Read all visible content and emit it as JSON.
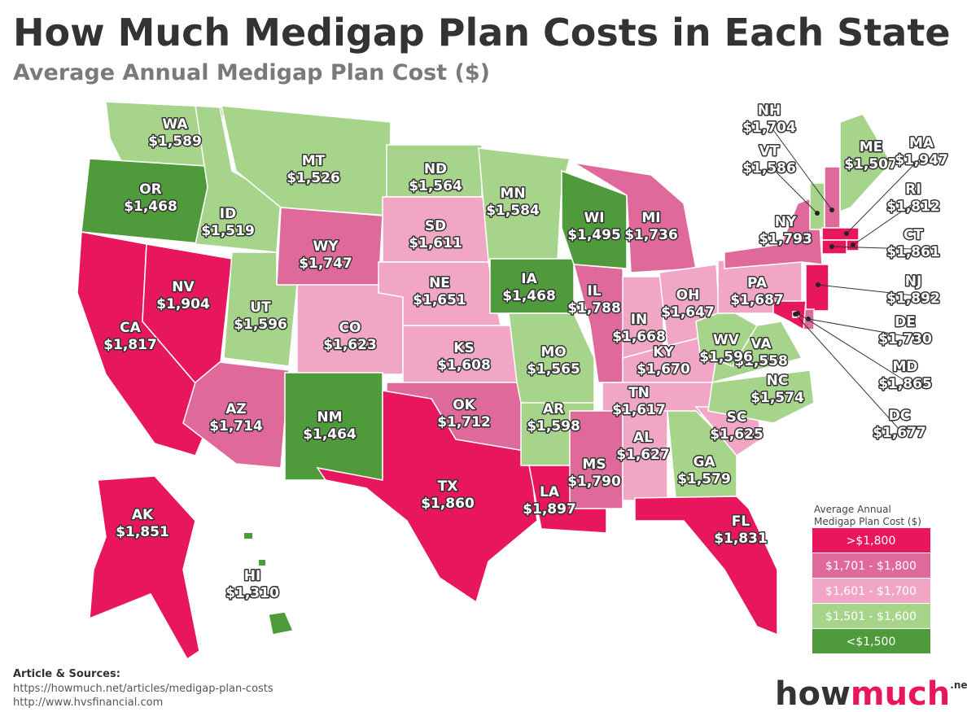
{
  "header": {
    "title": "How Much Medigap Plan Costs in Each State",
    "subtitle": "Average Annual Medigap Plan Cost ($)"
  },
  "states": [
    {
      "abbr": "WA",
      "cost": "$1,589",
      "color": "#a6d48a"
    },
    {
      "abbr": "OR",
      "cost": "$1,468",
      "color": "#4f9a3a"
    },
    {
      "abbr": "CA",
      "cost": "$1,817",
      "color": "#e8175d"
    },
    {
      "abbr": "NV",
      "cost": "$1,904",
      "color": "#e8175d"
    },
    {
      "abbr": "ID",
      "cost": "$1,519",
      "color": "#a6d48a"
    },
    {
      "abbr": "MT",
      "cost": "$1,526",
      "color": "#a6d48a"
    },
    {
      "abbr": "WY",
      "cost": "$1,747",
      "color": "#e0699b"
    },
    {
      "abbr": "UT",
      "cost": "$1,596",
      "color": "#a6d48a"
    },
    {
      "abbr": "CO",
      "cost": "$1,623",
      "color": "#f2a6c6"
    },
    {
      "abbr": "AZ",
      "cost": "$1,714",
      "color": "#e0699b"
    },
    {
      "abbr": "NM",
      "cost": "$1,464",
      "color": "#4f9a3a"
    },
    {
      "abbr": "ND",
      "cost": "$1,564",
      "color": "#a6d48a"
    },
    {
      "abbr": "SD",
      "cost": "$1,611",
      "color": "#f2a6c6"
    },
    {
      "abbr": "NE",
      "cost": "$1,651",
      "color": "#f2a6c6"
    },
    {
      "abbr": "KS",
      "cost": "$1,608",
      "color": "#f2a6c6"
    },
    {
      "abbr": "OK",
      "cost": "$1,712",
      "color": "#e0699b"
    },
    {
      "abbr": "TX",
      "cost": "$1,860",
      "color": "#e8175d"
    },
    {
      "abbr": "MN",
      "cost": "$1,584",
      "color": "#a6d48a"
    },
    {
      "abbr": "IA",
      "cost": "$1,468",
      "color": "#4f9a3a"
    },
    {
      "abbr": "MO",
      "cost": "$1,565",
      "color": "#a6d48a"
    },
    {
      "abbr": "AR",
      "cost": "$1,598",
      "color": "#a6d48a"
    },
    {
      "abbr": "LA",
      "cost": "$1,897",
      "color": "#e8175d"
    },
    {
      "abbr": "WI",
      "cost": "$1,495",
      "color": "#4f9a3a"
    },
    {
      "abbr": "IL",
      "cost": "$1,788",
      "color": "#e0699b"
    },
    {
      "abbr": "MI",
      "cost": "$1,736",
      "color": "#e0699b"
    },
    {
      "abbr": "IN",
      "cost": "$1,668",
      "color": "#f2a6c6"
    },
    {
      "abbr": "OH",
      "cost": "$1,647",
      "color": "#f2a6c6"
    },
    {
      "abbr": "KY",
      "cost": "$1,670",
      "color": "#f2a6c6"
    },
    {
      "abbr": "TN",
      "cost": "$1,617",
      "color": "#f2a6c6"
    },
    {
      "abbr": "MS",
      "cost": "$1,790",
      "color": "#e0699b"
    },
    {
      "abbr": "AL",
      "cost": "$1,627",
      "color": "#f2a6c6"
    },
    {
      "abbr": "GA",
      "cost": "$1,579",
      "color": "#a6d48a"
    },
    {
      "abbr": "FL",
      "cost": "$1,831",
      "color": "#e8175d"
    },
    {
      "abbr": "SC",
      "cost": "$1,625",
      "color": "#f2a6c6"
    },
    {
      "abbr": "NC",
      "cost": "$1,574",
      "color": "#a6d48a"
    },
    {
      "abbr": "VA",
      "cost": "$1,558",
      "color": "#a6d48a"
    },
    {
      "abbr": "WV",
      "cost": "$1,596",
      "color": "#a6d48a"
    },
    {
      "abbr": "PA",
      "cost": "$1,687",
      "color": "#f2a6c6"
    },
    {
      "abbr": "NY",
      "cost": "$1,793",
      "color": "#e0699b"
    },
    {
      "abbr": "VT",
      "cost": "$1,586",
      "color": "#a6d48a"
    },
    {
      "abbr": "NH",
      "cost": "$1,704",
      "color": "#e0699b"
    },
    {
      "abbr": "ME",
      "cost": "$1,507",
      "color": "#a6d48a"
    },
    {
      "abbr": "MA",
      "cost": "$1,947",
      "color": "#e8175d"
    },
    {
      "abbr": "RI",
      "cost": "$1,812",
      "color": "#e8175d"
    },
    {
      "abbr": "CT",
      "cost": "$1,861",
      "color": "#e8175d"
    },
    {
      "abbr": "NJ",
      "cost": "$1,892",
      "color": "#e8175d"
    },
    {
      "abbr": "DE",
      "cost": "$1,730",
      "color": "#e0699b"
    },
    {
      "abbr": "MD",
      "cost": "$1,865",
      "color": "#e8175d"
    },
    {
      "abbr": "DC",
      "cost": "$1,677",
      "color": "#f2a6c6"
    },
    {
      "abbr": "AK",
      "cost": "$1,851",
      "color": "#e8175d"
    },
    {
      "abbr": "HI",
      "cost": "$1,310",
      "color": "#4f9a3a"
    }
  ],
  "legend": {
    "title": [
      "Average Annual",
      "Medigap Plan Cost ($)"
    ],
    "items": [
      {
        "label": ">$1,800",
        "color": "#e8175d"
      },
      {
        "label": "$1,701 - $1,800",
        "color": "#e0699b"
      },
      {
        "label": "$1,601 - $1,700",
        "color": "#f2a6c6"
      },
      {
        "label": "$1,501 - $1,600",
        "color": "#a6d48a"
      },
      {
        "label": "<$1,500",
        "color": "#4f9a3a"
      }
    ]
  },
  "sources": {
    "heading": "Article & Sources:",
    "lines": [
      "https://howmuch.net/articles/medigap-plan-costs",
      "http://www.hvsfinancial.com"
    ]
  },
  "logo": {
    "name": "how",
    "highlight": "much",
    "suffix": ".net"
  }
}
